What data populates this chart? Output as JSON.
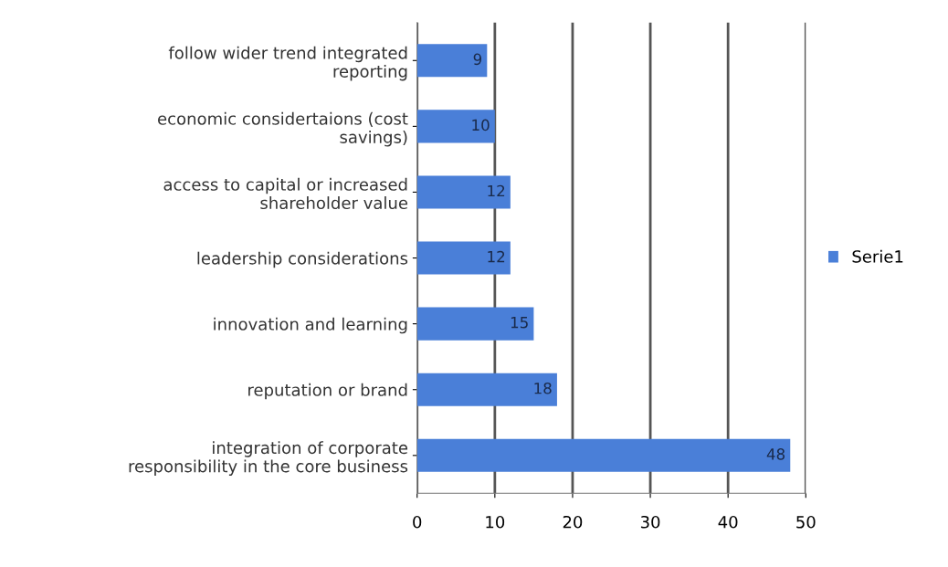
{
  "chart_data": {
    "type": "bar",
    "orientation": "horizontal",
    "categories": [
      "follow wider trend integrated\nreporting",
      "economic considertaions (cost\nsavings)",
      "access to capital or increased\nshareholder value",
      "leadership considerations",
      "innovation and learning",
      "reputation or brand",
      "integration of corporate\nresponsibility in the core business"
    ],
    "series": [
      {
        "name": "Serie1",
        "color": "#4a7fd8",
        "values": [
          9,
          10,
          12,
          12,
          15,
          18,
          48
        ]
      }
    ],
    "xlim": [
      0,
      50
    ],
    "xticks": [
      0,
      10,
      20,
      30,
      40,
      50
    ],
    "grid": "x",
    "legend": "right",
    "data_labels": true
  }
}
